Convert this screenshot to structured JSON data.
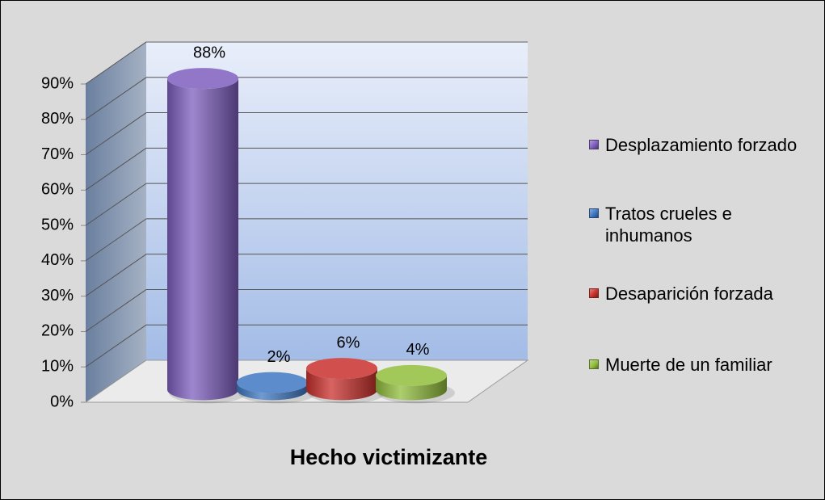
{
  "chart_data": {
    "type": "bar3d",
    "x_label": "Hecho victimizante",
    "ylim": [
      0,
      90
    ],
    "yticks": [
      {
        "value": 0,
        "label": "0%"
      },
      {
        "value": 10,
        "label": "10%"
      },
      {
        "value": 20,
        "label": "20%"
      },
      {
        "value": 30,
        "label": "30%"
      },
      {
        "value": 40,
        "label": "40%"
      },
      {
        "value": 50,
        "label": "50%"
      },
      {
        "value": 60,
        "label": "60%"
      },
      {
        "value": 70,
        "label": "70%"
      },
      {
        "value": 80,
        "label": "80%"
      },
      {
        "value": 90,
        "label": "90%"
      }
    ],
    "grid": true,
    "legend": "right",
    "series": [
      {
        "name": "Desplazamiento forzado",
        "color": "#7f5fbf",
        "values": [
          88
        ],
        "value_labels": [
          "88%"
        ]
      },
      {
        "name": "Tratos crueles e inhumanos",
        "color": "#3f78c3",
        "values": [
          2
        ],
        "value_labels": [
          "2%"
        ]
      },
      {
        "name": "Desaparición forzada",
        "color": "#c9302c",
        "values": [
          6
        ],
        "value_labels": [
          "6%"
        ]
      },
      {
        "name": "Muerte de un familiar",
        "color": "#92be3c",
        "values": [
          4
        ],
        "value_labels": [
          "4%"
        ]
      }
    ]
  }
}
